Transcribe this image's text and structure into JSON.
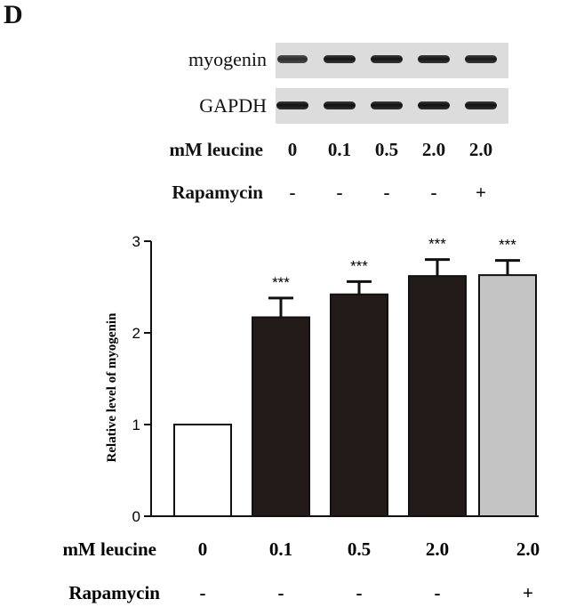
{
  "panel_letter": "D",
  "blot": {
    "rows": [
      {
        "label": "myogenin",
        "band_intensity": [
          0.7,
          0.95,
          0.95,
          0.95,
          0.9
        ]
      },
      {
        "label": "GAPDH",
        "band_intensity": [
          1,
          1,
          1,
          1,
          1
        ]
      }
    ],
    "leucine_label": "mM leucine",
    "leucine_values": [
      "0",
      "0.1",
      "0.5",
      "2.0",
      "2.0"
    ],
    "rapamycin_label": "Rapamycin",
    "rapamycin_values": [
      "-",
      "-",
      "-",
      "-",
      "+"
    ]
  },
  "chart_data": {
    "type": "bar",
    "categories": [
      "0",
      "0.1",
      "0.5",
      "2.0",
      "2.0"
    ],
    "values": [
      1.0,
      2.17,
      2.42,
      2.62,
      2.63
    ],
    "errors": [
      0,
      0.21,
      0.14,
      0.18,
      0.16
    ],
    "significance": [
      "",
      "***",
      "***",
      "***",
      "***"
    ],
    "bar_colors": [
      "#ffffff",
      "#231a1a",
      "#231a1a",
      "#231a1a",
      "#c4c4c4"
    ],
    "ylabel": "Relative level of myogenin",
    "ylim": [
      0,
      3
    ],
    "yticks": [
      0,
      1,
      2,
      3
    ],
    "xlabel": "",
    "row1_label": "mM leucine",
    "row1_values": [
      "0",
      "0.1",
      "0.5",
      "2.0",
      "2.0"
    ],
    "row2_label": "Rapamycin",
    "row2_values": [
      "-",
      "-",
      "-",
      "-",
      "+"
    ]
  }
}
